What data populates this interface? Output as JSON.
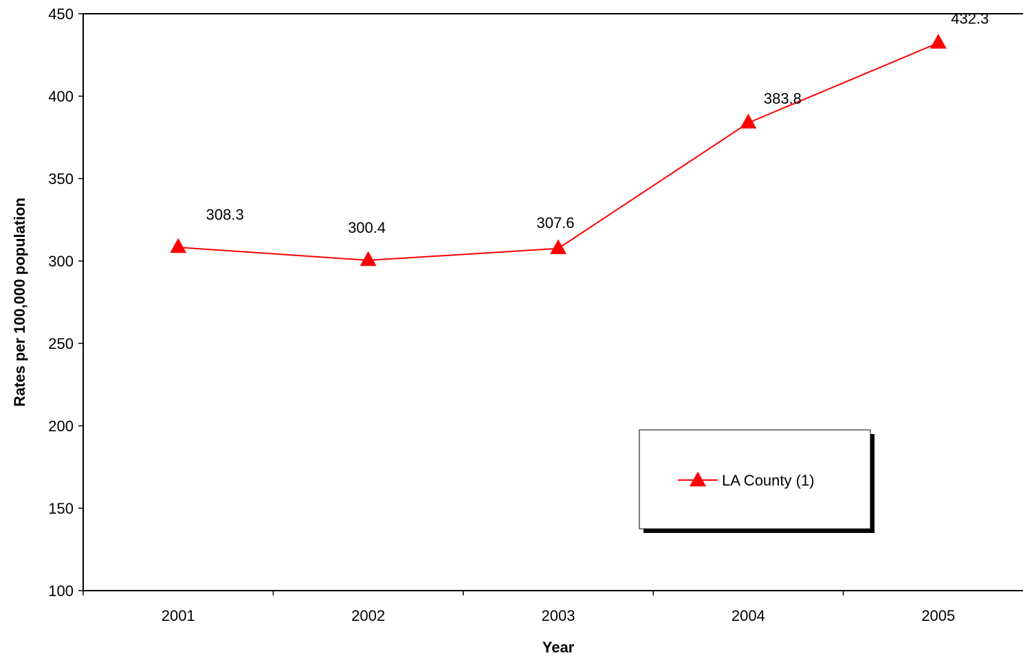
{
  "chart_data": {
    "type": "line",
    "categories": [
      "2001",
      "2002",
      "2003",
      "2004",
      "2005"
    ],
    "series": [
      {
        "name": "LA County (1)",
        "values": [
          308.3,
          300.4,
          307.6,
          383.8,
          432.3
        ],
        "labels": [
          "308.3",
          "300.4",
          "307.6",
          "383.8",
          "432.3"
        ],
        "color": "#ff0000",
        "marker": "triangle"
      }
    ],
    "xlabel": "Year",
    "ylabel": "Rates per 100,000 population",
    "ylim": [
      100,
      450
    ],
    "yticks": [
      100,
      150,
      200,
      250,
      300,
      350,
      400,
      450
    ],
    "ytick_labels": [
      "100",
      "150",
      "200",
      "250",
      "300",
      "350",
      "400",
      "450"
    ],
    "grid": false,
    "legend_position": "lower-right"
  }
}
